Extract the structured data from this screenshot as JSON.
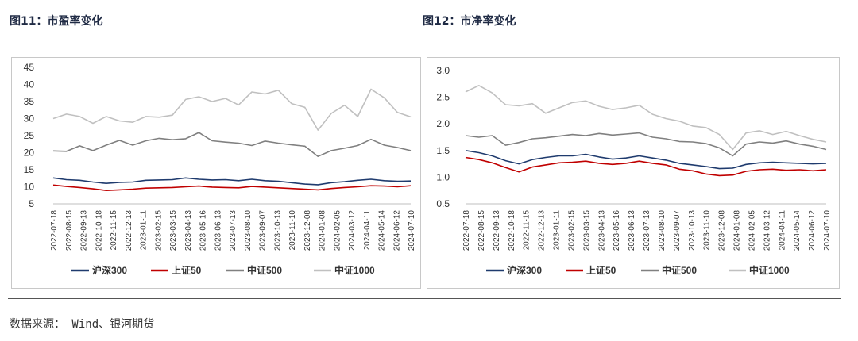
{
  "titles": {
    "left": "图11：市盈率变化",
    "right": "图12：市净率变化"
  },
  "source": "数据来源： Wind、银河期货",
  "colors": {
    "沪深300": "#1f3b6e",
    "上证50": "#c00000",
    "中证500": "#808080",
    "中证1000": "#c0c0c0"
  },
  "chart_data": [
    {
      "type": "line",
      "title": "",
      "xlabel": "",
      "ylabel": "",
      "ylim": [
        5,
        45
      ],
      "yticks": [
        5,
        10,
        15,
        20,
        25,
        30,
        35,
        40,
        45
      ],
      "grid": false,
      "legend_position": "bottom",
      "x_tick_labels": [
        "2022-07-18",
        "2022-08-15",
        "2022-09-13",
        "2022-10-18",
        "2022-11-15",
        "2022-12-13",
        "2023-01-11",
        "2023-02-15",
        "2023-03-15",
        "2023-04-13",
        "2023-05-16",
        "2023-06-13",
        "2023-07-13",
        "2023-08-10",
        "2023-09-07",
        "2023-10-13",
        "2023-11-10",
        "2023-12-08",
        "2024-01-08",
        "2024-02-05",
        "2024-03-12",
        "2024-04-11",
        "2024-05-14",
        "2024-06-12",
        "2024-07-10"
      ],
      "series": [
        {
          "name": "沪深300",
          "values": [
            12.6,
            12.1,
            11.9,
            11.4,
            11.0,
            11.3,
            11.4,
            11.9,
            12.0,
            12.1,
            12.6,
            12.2,
            12.0,
            12.1,
            11.8,
            12.2,
            11.8,
            11.6,
            11.2,
            10.8,
            10.6,
            11.2,
            11.5,
            11.9,
            12.2,
            11.8,
            11.6,
            11.7
          ]
        },
        {
          "name": "上证50",
          "values": [
            10.5,
            10.1,
            9.8,
            9.4,
            8.9,
            9.1,
            9.3,
            9.6,
            9.7,
            9.8,
            10.0,
            10.2,
            9.9,
            9.8,
            9.7,
            10.1,
            9.9,
            9.7,
            9.5,
            9.3,
            9.1,
            9.5,
            9.8,
            10.0,
            10.3,
            10.2,
            10.0,
            10.3
          ]
        },
        {
          "name": "中证500",
          "values": [
            20.5,
            20.4,
            22.0,
            20.6,
            22.2,
            23.6,
            22.2,
            23.5,
            24.2,
            23.8,
            24.1,
            25.9,
            23.5,
            23.1,
            22.8,
            22.1,
            23.4,
            22.8,
            22.3,
            21.9,
            18.9,
            20.6,
            21.3,
            22.1,
            23.9,
            22.2,
            21.5,
            20.6
          ]
        },
        {
          "name": "中证1000",
          "values": [
            30.0,
            31.3,
            30.6,
            28.6,
            30.6,
            29.3,
            28.9,
            30.6,
            30.4,
            31.0,
            35.6,
            36.4,
            35.0,
            35.9,
            34.0,
            37.8,
            37.2,
            38.3,
            34.4,
            33.3,
            26.6,
            31.5,
            33.9,
            30.6,
            38.6,
            36.1,
            31.8,
            30.5
          ]
        }
      ]
    },
    {
      "type": "line",
      "title": "",
      "xlabel": "",
      "ylabel": "",
      "ylim": [
        0.5,
        3.0
      ],
      "yticks": [
        0.5,
        1.0,
        1.5,
        2.0,
        2.5,
        3.0
      ],
      "grid": false,
      "legend_position": "bottom",
      "x_tick_labels": [
        "2022-07-18",
        "2022-08-15",
        "2022-09-13",
        "2022-10-18",
        "2022-11-15",
        "2022-12-13",
        "2023-01-11",
        "2023-02-15",
        "2023-03-15",
        "2023-04-13",
        "2023-05-16",
        "2023-06-13",
        "2023-07-13",
        "2023-08-10",
        "2023-09-07",
        "2023-10-13",
        "2023-11-10",
        "2023-12-08",
        "2024-01-08",
        "2024-02-05",
        "2024-03-12",
        "2024-04-11",
        "2024-05-14",
        "2024-06-12",
        "2024-07-10"
      ],
      "series": [
        {
          "name": "沪深300",
          "values": [
            1.5,
            1.46,
            1.4,
            1.31,
            1.25,
            1.33,
            1.37,
            1.4,
            1.4,
            1.43,
            1.38,
            1.34,
            1.36,
            1.4,
            1.36,
            1.32,
            1.26,
            1.23,
            1.2,
            1.16,
            1.17,
            1.24,
            1.27,
            1.28,
            1.27,
            1.26,
            1.25,
            1.26
          ]
        },
        {
          "name": "上证50",
          "values": [
            1.37,
            1.33,
            1.27,
            1.18,
            1.1,
            1.19,
            1.23,
            1.27,
            1.28,
            1.3,
            1.26,
            1.24,
            1.26,
            1.3,
            1.26,
            1.23,
            1.15,
            1.12,
            1.06,
            1.03,
            1.04,
            1.11,
            1.14,
            1.15,
            1.13,
            1.14,
            1.12,
            1.14
          ]
        },
        {
          "name": "中证500",
          "values": [
            1.78,
            1.75,
            1.78,
            1.6,
            1.65,
            1.72,
            1.74,
            1.77,
            1.8,
            1.78,
            1.82,
            1.79,
            1.81,
            1.83,
            1.75,
            1.72,
            1.67,
            1.66,
            1.63,
            1.55,
            1.4,
            1.62,
            1.66,
            1.64,
            1.68,
            1.62,
            1.58,
            1.52
          ]
        },
        {
          "name": "中证1000",
          "values": [
            2.6,
            2.72,
            2.58,
            2.36,
            2.34,
            2.38,
            2.2,
            2.3,
            2.4,
            2.43,
            2.33,
            2.27,
            2.3,
            2.35,
            2.18,
            2.1,
            2.05,
            1.96,
            1.93,
            1.8,
            1.52,
            1.83,
            1.87,
            1.8,
            1.86,
            1.78,
            1.71,
            1.66
          ]
        }
      ]
    }
  ]
}
